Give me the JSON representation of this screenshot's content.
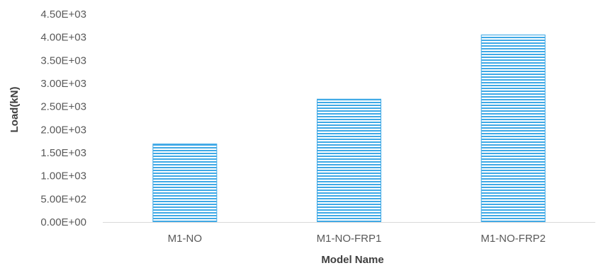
{
  "chart_data": {
    "type": "bar",
    "title": "",
    "xlabel": "Model Name",
    "ylabel": "Load(kN)",
    "categories": [
      "M1-NO",
      "M1-NO-FRP1",
      "M1-NO-FRP2"
    ],
    "values": [
      1690,
      2660,
      4050
    ],
    "ylim": [
      0,
      4500
    ],
    "y_ticks": [
      {
        "value": 0,
        "label": "0.00E+00"
      },
      {
        "value": 500,
        "label": "5.00E+02"
      },
      {
        "value": 1000,
        "label": "1.00E+03"
      },
      {
        "value": 1500,
        "label": "1.50E+03"
      },
      {
        "value": 2000,
        "label": "2.00E+03"
      },
      {
        "value": 2500,
        "label": "2.50E+03"
      },
      {
        "value": 3000,
        "label": "3.00E+03"
      },
      {
        "value": 3500,
        "label": "3.50E+03"
      },
      {
        "value": 4000,
        "label": "4.00E+03"
      },
      {
        "value": 4500,
        "label": "4.50E+03"
      }
    ],
    "grid": false,
    "legend": "none",
    "bar_style": "horizontal-hatch",
    "colors": {
      "bar_line": "#3fa9e6",
      "bar_gap": "#ffffff",
      "axis": "#d9d9d9"
    }
  }
}
